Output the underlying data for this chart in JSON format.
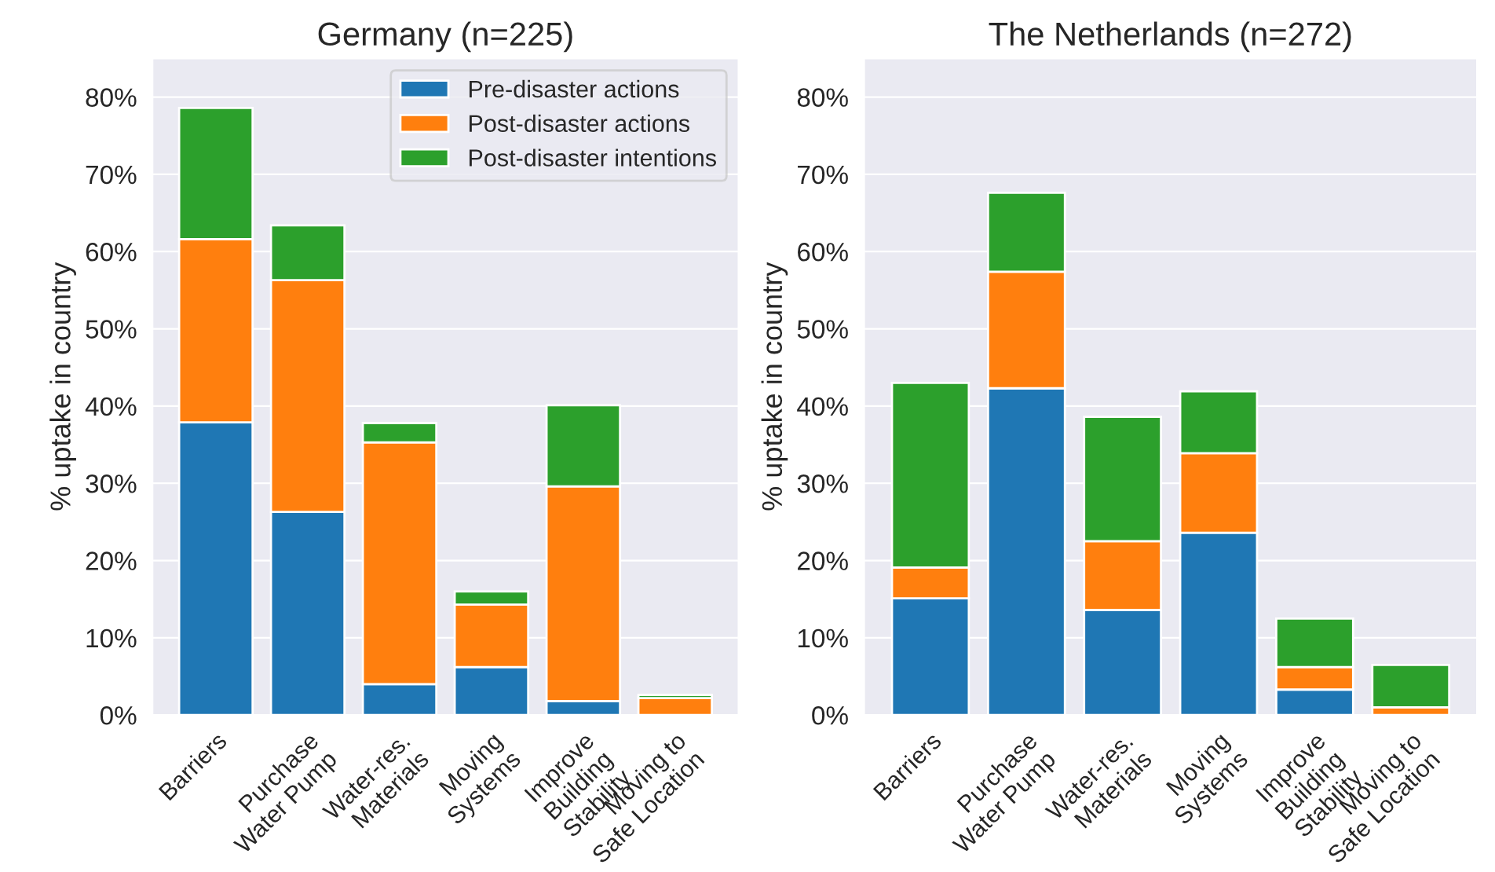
{
  "chart_data": [
    {
      "type": "bar",
      "stacked": true,
      "title": "Germany (n=225)",
      "ylabel": "% uptake in country",
      "categories": [
        "Barriers",
        "Purchase\nWater Pump",
        "Water-res.\nMaterials",
        "Moving\nSystems",
        "Improve\nBuilding\nStability",
        "Moving to\nSafe Location"
      ],
      "series": [
        {
          "name": "Pre-disaster actions",
          "color": "#1f77b4",
          "values": [
            37.9,
            26.3,
            4.0,
            6.2,
            1.8,
            0
          ]
        },
        {
          "name": "Post-disaster actions",
          "color": "#ff7f0e",
          "values": [
            23.7,
            30.0,
            31.3,
            8.1,
            27.8,
            2.2
          ]
        },
        {
          "name": "Post-disaster intentions",
          "color": "#2ca02c",
          "values": [
            17.0,
            7.1,
            2.5,
            1.7,
            10.5,
            0.4
          ]
        }
      ],
      "ylim": [
        0,
        85
      ],
      "yticks": [
        {
          "value": 0,
          "label": "0%"
        },
        {
          "value": 10,
          "label": "10%"
        },
        {
          "value": 20,
          "label": "20%"
        },
        {
          "value": 30,
          "label": "30%"
        },
        {
          "value": 40,
          "label": "40%"
        },
        {
          "value": 50,
          "label": "50%"
        },
        {
          "value": 60,
          "label": "60%"
        },
        {
          "value": 70,
          "label": "70%"
        },
        {
          "value": 80,
          "label": "80%"
        }
      ],
      "grid": "y",
      "legend": "top right"
    },
    {
      "type": "bar",
      "stacked": true,
      "title": "The Netherlands (n=272)",
      "ylabel": "% uptake in country",
      "categories": [
        "Barriers",
        "Purchase\nWater Pump",
        "Water-res.\nMaterials",
        "Moving\nSystems",
        "Improve\nBuilding\nStability",
        "Moving to\nSafe Location"
      ],
      "series": [
        {
          "color": "#1f77b4",
          "values": [
            15.1,
            42.3,
            13.6,
            23.6,
            3.3,
            0
          ]
        },
        {
          "color": "#ff7f0e",
          "values": [
            4.0,
            15.1,
            8.9,
            10.3,
            2.9,
            1.0
          ]
        },
        {
          "color": "#2ca02c",
          "values": [
            23.9,
            10.2,
            16.1,
            8.0,
            6.3,
            5.5
          ]
        }
      ],
      "ylim": [
        0,
        85
      ],
      "yticks": [
        {
          "value": 0,
          "label": "0%"
        },
        {
          "value": 10,
          "label": "10%"
        },
        {
          "value": 20,
          "label": "20%"
        },
        {
          "value": 30,
          "label": "30%"
        },
        {
          "value": 40,
          "label": "40%"
        },
        {
          "value": 50,
          "label": "50%"
        },
        {
          "value": 60,
          "label": "60%"
        },
        {
          "value": 70,
          "label": "70%"
        },
        {
          "value": 80,
          "label": "80%"
        }
      ],
      "grid": "y"
    }
  ]
}
